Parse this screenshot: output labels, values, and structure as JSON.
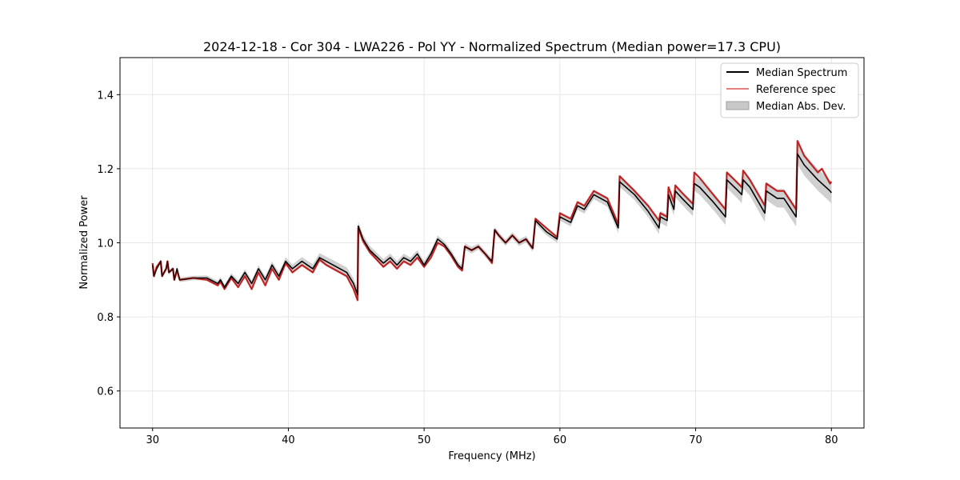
{
  "chart_data": {
    "type": "line",
    "title": "2024-12-18 - Cor 304 - LWA226 - Pol YY - Normalized Spectrum (Median power=17.3 CPU)",
    "xlabel": "Frequency (MHz)",
    "ylabel": "Normalized Power",
    "xlim": [
      27.6,
      82.4
    ],
    "ylim": [
      0.5,
      1.5
    ],
    "xticks": [
      30,
      40,
      50,
      60,
      70,
      80
    ],
    "yticks": [
      0.6,
      0.8,
      1.0,
      1.2,
      1.4
    ],
    "xtick_labels": [
      "30",
      "40",
      "50",
      "60",
      "70",
      "80"
    ],
    "ytick_labels": [
      "0.6",
      "0.8",
      "1.0",
      "1.2",
      "1.4"
    ],
    "grid": true,
    "legend_position": "top-right",
    "legend": [
      "Median Spectrum",
      "Reference spec",
      "Median Abs. Dev."
    ],
    "colors": {
      "median": "#000000",
      "reference": "#d62728",
      "mad": "#c8c8c8",
      "overlap": "#8b0000"
    },
    "series": [
      {
        "name": "Median Spectrum",
        "x": [
          30.0,
          30.1,
          30.3,
          30.6,
          30.7,
          31.0,
          31.1,
          31.2,
          31.5,
          31.6,
          31.8,
          32.0,
          33.0,
          34.0,
          34.8,
          35.0,
          35.3,
          35.8,
          36.3,
          36.8,
          37.3,
          37.8,
          38.3,
          38.8,
          39.3,
          39.8,
          40.3,
          41.0,
          41.8,
          42.3,
          42.8,
          43.3,
          43.8,
          44.3,
          44.8,
          45.1,
          45.15,
          45.5,
          46.0,
          47.0,
          47.5,
          48.0,
          48.5,
          49.0,
          49.5,
          50.0,
          50.5,
          51.0,
          51.5,
          52.0,
          52.5,
          52.8,
          53.0,
          53.5,
          54.0,
          54.5,
          55.0,
          55.2,
          55.5,
          56.0,
          56.5,
          57.0,
          57.5,
          58.0,
          58.2,
          59.0,
          59.8,
          60.0,
          60.8,
          61.3,
          61.8,
          62.5,
          63.5,
          64.3,
          64.4,
          65.5,
          66.5,
          67.3,
          67.4,
          67.9,
          68.0,
          68.4,
          68.5,
          69.0,
          69.8,
          69.9,
          70.3,
          71.3,
          72.2,
          72.3,
          73.0,
          73.4,
          73.5,
          74.0,
          75.1,
          75.2,
          76.0,
          76.5,
          77.4,
          77.5,
          78.0,
          79.0,
          79.3,
          79.9,
          80.0
        ],
        "values": [
          0.94,
          0.91,
          0.93,
          0.95,
          0.91,
          0.93,
          0.95,
          0.92,
          0.93,
          0.9,
          0.93,
          0.9,
          0.905,
          0.905,
          0.89,
          0.9,
          0.88,
          0.91,
          0.89,
          0.92,
          0.89,
          0.93,
          0.9,
          0.94,
          0.91,
          0.95,
          0.93,
          0.95,
          0.93,
          0.96,
          0.95,
          0.94,
          0.93,
          0.92,
          0.89,
          0.86,
          1.045,
          1.01,
          0.98,
          0.945,
          0.96,
          0.94,
          0.96,
          0.95,
          0.97,
          0.94,
          0.97,
          1.01,
          0.995,
          0.97,
          0.94,
          0.93,
          0.99,
          0.98,
          0.99,
          0.97,
          0.95,
          1.035,
          1.02,
          1.0,
          1.02,
          1.0,
          1.01,
          0.985,
          1.06,
          1.03,
          1.01,
          1.07,
          1.055,
          1.1,
          1.09,
          1.13,
          1.11,
          1.04,
          1.165,
          1.13,
          1.085,
          1.04,
          1.07,
          1.06,
          1.13,
          1.09,
          1.14,
          1.12,
          1.09,
          1.16,
          1.15,
          1.11,
          1.07,
          1.17,
          1.145,
          1.13,
          1.17,
          1.15,
          1.08,
          1.14,
          1.12,
          1.12,
          1.07,
          1.24,
          1.21,
          1.17,
          1.16,
          1.14,
          1.135
        ]
      },
      {
        "name": "Reference spec",
        "x": [
          30.0,
          30.1,
          30.3,
          30.6,
          30.7,
          31.0,
          31.1,
          31.2,
          31.5,
          31.6,
          31.8,
          32.0,
          33.0,
          34.0,
          34.8,
          35.0,
          35.3,
          35.8,
          36.3,
          36.8,
          37.3,
          37.8,
          38.3,
          38.8,
          39.3,
          39.8,
          40.3,
          41.0,
          41.8,
          42.3,
          42.8,
          43.3,
          43.8,
          44.3,
          44.8,
          45.1,
          45.15,
          45.5,
          46.0,
          47.0,
          47.5,
          48.0,
          48.5,
          49.0,
          49.5,
          50.0,
          50.5,
          51.0,
          51.5,
          52.0,
          52.5,
          52.8,
          53.0,
          53.5,
          54.0,
          54.5,
          55.0,
          55.2,
          55.5,
          56.0,
          56.5,
          57.0,
          57.5,
          58.0,
          58.2,
          59.0,
          59.8,
          60.0,
          60.8,
          61.3,
          61.8,
          62.5,
          63.5,
          64.3,
          64.4,
          65.5,
          66.5,
          67.3,
          67.4,
          67.9,
          68.0,
          68.4,
          68.5,
          69.0,
          69.8,
          69.9,
          70.3,
          71.3,
          72.2,
          72.3,
          73.0,
          73.4,
          73.5,
          74.0,
          75.1,
          75.2,
          76.0,
          76.5,
          77.4,
          77.5,
          78.0,
          79.0,
          79.3,
          79.9,
          80.0
        ],
        "values": [
          0.945,
          0.91,
          0.935,
          0.95,
          0.91,
          0.93,
          0.95,
          0.92,
          0.93,
          0.9,
          0.925,
          0.9,
          0.905,
          0.9,
          0.885,
          0.895,
          0.875,
          0.905,
          0.88,
          0.91,
          0.875,
          0.92,
          0.885,
          0.93,
          0.9,
          0.945,
          0.92,
          0.94,
          0.92,
          0.955,
          0.94,
          0.93,
          0.92,
          0.91,
          0.875,
          0.845,
          1.04,
          1.005,
          0.975,
          0.935,
          0.95,
          0.93,
          0.95,
          0.94,
          0.96,
          0.935,
          0.96,
          1.0,
          0.99,
          0.965,
          0.935,
          0.925,
          0.99,
          0.98,
          0.99,
          0.97,
          0.945,
          1.035,
          1.02,
          1.0,
          1.02,
          1.0,
          1.01,
          0.985,
          1.065,
          1.04,
          1.015,
          1.08,
          1.065,
          1.11,
          1.1,
          1.14,
          1.12,
          1.05,
          1.18,
          1.14,
          1.1,
          1.06,
          1.08,
          1.07,
          1.15,
          1.11,
          1.155,
          1.135,
          1.105,
          1.19,
          1.175,
          1.13,
          1.09,
          1.19,
          1.165,
          1.15,
          1.195,
          1.17,
          1.1,
          1.16,
          1.14,
          1.14,
          1.09,
          1.275,
          1.235,
          1.19,
          1.2,
          1.16,
          1.165
        ]
      }
    ],
    "mad_band": {
      "name": "Median Abs. Dev.",
      "x": [
        30.0,
        33.0,
        36.0,
        39.0,
        42.0,
        44.8,
        45.1,
        45.15,
        50.0,
        55.0,
        60.0,
        62.5,
        64.3,
        64.4,
        67.3,
        67.4,
        69.8,
        69.9,
        72.2,
        72.3,
        75.1,
        75.2,
        77.4,
        77.5,
        80.0
      ],
      "spread": [
        0.006,
        0.006,
        0.008,
        0.01,
        0.012,
        0.014,
        0.016,
        0.012,
        0.01,
        0.008,
        0.01,
        0.012,
        0.014,
        0.014,
        0.016,
        0.016,
        0.018,
        0.02,
        0.022,
        0.022,
        0.024,
        0.024,
        0.026,
        0.028,
        0.03
      ]
    }
  }
}
